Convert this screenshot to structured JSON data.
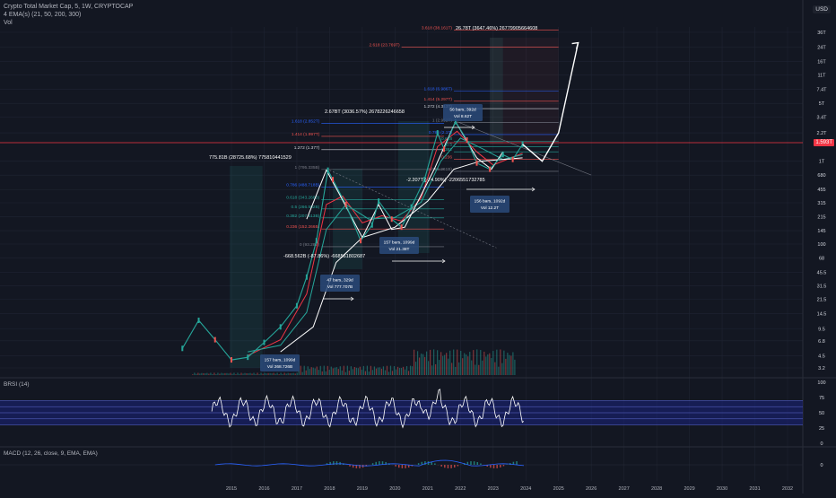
{
  "header": {
    "title": "Crypto Total Market Cap, 5, 1W, CRYPTOCAP",
    "indicator": "4 EMA(s) (21, 50, 200, 300)",
    "vol": "Vol"
  },
  "currency": "USD",
  "current_price_label": "1.593T",
  "panels": {
    "rsi_label": "BRSI (14)",
    "macd_label": "MACD (12, 26, close, 9, EMA, EMA)"
  },
  "colors": {
    "background": "#131722",
    "grid": "#1f2433",
    "candle_up": "#26a69a",
    "candle_down": "#ef5350",
    "ema_red": "#f23645",
    "ema_green": "#26a69a",
    "white_line": "#ffffff",
    "fib_blue": "#2962ff",
    "rsi_band": "#1a237e"
  },
  "chart_data": {
    "type": "line",
    "title": "Crypto Total Market Cap",
    "x_ticks": [
      "2015",
      "2016",
      "2017",
      "2018",
      "2019",
      "2020",
      "2021",
      "2022",
      "2023",
      "2024",
      "2025",
      "2026",
      "2027",
      "2028",
      "2029",
      "2030",
      "2031",
      "2032"
    ],
    "y_scale": "log",
    "y_ticks": [
      "36T",
      "24T",
      "16T",
      "11T",
      "7.4T",
      "5T",
      "3.4T",
      "2.2T",
      "1T",
      "680B",
      "455B",
      "315B",
      "215B",
      "145B",
      "100B",
      "68B",
      "45.5B",
      "31.5B",
      "21.5B",
      "14.5B",
      "9.5B",
      "6.8B",
      "4.5B",
      "3.2B"
    ],
    "series": [
      {
        "name": "",
        "note": "weekly price (approx, billions USD)",
        "x": [
          2013.5,
          2014.0,
          2014.5,
          2015.0,
          2015.5,
          2016.0,
          2016.5,
          2017.0,
          2017.3,
          2017.6,
          2017.95,
          2018.1,
          2018.5,
          2018.95,
          2019.3,
          2019.5,
          2019.9,
          2020.2,
          2020.5,
          2020.9,
          2021.3,
          2021.5,
          2021.85,
          2022.2,
          2022.5,
          2022.9,
          2023.3,
          2023.6,
          2023.9
        ],
        "values": [
          5.5,
          12,
          7,
          4,
          4.3,
          6.5,
          10,
          18,
          40,
          110,
          780,
          600,
          300,
          110,
          170,
          330,
          200,
          160,
          280,
          600,
          2200,
          1400,
          3000,
          1800,
          950,
          800,
          1200,
          1050,
          1600
        ]
      },
      {
        "name": "",
        "note": "projection (approx)",
        "x": [
          2023.9,
          2024.5,
          2025.0,
          2025.6
        ],
        "values": [
          1600,
          1000,
          2200,
          27000
        ]
      }
    ]
  },
  "annotations": {
    "peak_2018": "775.81B (28725.68%) 775810441529",
    "peak_2021": "2.67BT (3036.57%) 2678226246658",
    "target": "26.78T (3647.46%) 26779905664608",
    "drop_2018": "-668.562B (-87.86%) -668561802687",
    "drop_2022": "-2.207T (-74.90%) -2206551732785",
    "box1_a": "157 bars, 1099d",
    "box1_b": "Vol 268.726B",
    "box2_a": "47 bars, 329d",
    "box2_b": "Vol 777.707B",
    "box3_a": "157 bars, 1099d",
    "box3_b": "Vol 21.38T",
    "box4_a": "56 bars, 392d",
    "box4_b": "Vol 8.62T",
    "box5_a": "156 bars, 1092d",
    "box5_b": "Vol 12.2T"
  },
  "fib_levels": {
    "set1": [
      "1.618 (2.852T)",
      "1.414 (1.997T)",
      "1.272 (1.377)",
      "1 (795.335B)",
      "0.786 (488.718B)",
      "0.618 (343.268B)",
      "0.5 (266.502B)",
      "0.382 (207.513B)",
      "0.236 (152.266B)",
      "0 (93.28B)"
    ],
    "set2": [
      "2.618 (23.769T)",
      "1.618 (6.986T)",
      "1.414 (5.297T)",
      "1.272 (4.313T)",
      "1 (2.952T)",
      "0.786 (2.1T)",
      "0.618",
      "0.5",
      "0.382",
      "0.236",
      "0 (755.261B)"
    ],
    "set3": [
      "3.618 (38.161T)"
    ]
  },
  "rsi_ticks": [
    "100",
    "75",
    "50",
    "25",
    "0"
  ],
  "macd_ticks": [
    "0"
  ]
}
